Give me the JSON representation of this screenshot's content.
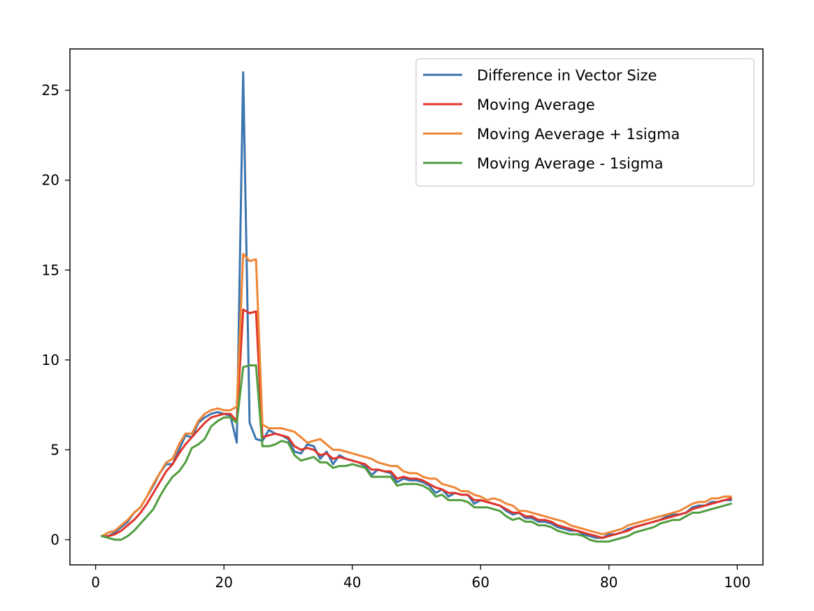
{
  "chart_data": {
    "type": "line",
    "title": "",
    "xlabel": "",
    "ylabel": "",
    "xlim": [
      -4,
      104
    ],
    "ylim": [
      -1.4,
      27.3
    ],
    "x_ticks": [
      0,
      20,
      40,
      60,
      80,
      100
    ],
    "y_ticks": [
      0,
      5,
      10,
      15,
      20,
      25
    ],
    "grid": false,
    "legend_position": "top-right",
    "x": [
      1,
      2,
      3,
      4,
      5,
      6,
      7,
      8,
      9,
      10,
      11,
      12,
      13,
      14,
      15,
      16,
      17,
      18,
      19,
      20,
      21,
      22,
      23,
      24,
      25,
      26,
      27,
      28,
      29,
      30,
      31,
      32,
      33,
      34,
      35,
      36,
      37,
      38,
      39,
      40,
      41,
      42,
      43,
      44,
      45,
      46,
      47,
      48,
      49,
      50,
      51,
      52,
      53,
      54,
      55,
      56,
      57,
      58,
      59,
      60,
      61,
      62,
      63,
      64,
      65,
      66,
      67,
      68,
      69,
      70,
      71,
      72,
      73,
      74,
      75,
      76,
      77,
      78,
      79,
      80,
      81,
      82,
      83,
      84,
      85,
      86,
      87,
      88,
      89,
      90,
      91,
      92,
      93,
      94,
      95,
      96,
      97,
      98,
      99
    ],
    "series": [
      {
        "name": "Difference in Vector Size",
        "color": "#3b75af",
        "values": [
          0.2,
          0.2,
          0.4,
          0.7,
          1.0,
          1.5,
          1.8,
          2.4,
          3.0,
          3.7,
          4.2,
          4.2,
          5.0,
          5.8,
          5.7,
          6.5,
          6.8,
          7.0,
          7.1,
          7.0,
          6.9,
          5.4,
          26.0,
          6.5,
          5.6,
          5.5,
          6.1,
          5.9,
          5.8,
          5.6,
          4.9,
          4.8,
          5.3,
          5.2,
          4.5,
          4.9,
          4.2,
          4.7,
          4.5,
          4.4,
          4.3,
          4.1,
          3.6,
          3.9,
          3.8,
          3.7,
          3.2,
          3.4,
          3.3,
          3.3,
          3.2,
          3.0,
          2.6,
          2.8,
          2.4,
          2.6,
          2.5,
          2.5,
          2.0,
          2.2,
          2.1,
          2.0,
          1.9,
          1.6,
          1.4,
          1.5,
          1.2,
          1.2,
          1.0,
          1.0,
          0.9,
          0.7,
          0.6,
          0.5,
          0.5,
          0.3,
          0.2,
          0.1,
          0.1,
          0.3,
          0.3,
          0.4,
          0.6,
          0.7,
          0.8,
          0.9,
          1.0,
          1.1,
          1.3,
          1.4,
          1.4,
          1.5,
          1.8,
          1.9,
          1.9,
          2.1,
          2.1,
          2.2,
          2.2
        ]
      },
      {
        "name": "Moving Average",
        "color": "#e0352b",
        "values": [
          0.2,
          0.2,
          0.3,
          0.5,
          0.8,
          1.1,
          1.5,
          2.0,
          2.6,
          3.2,
          3.8,
          4.2,
          4.8,
          5.3,
          5.7,
          6.1,
          6.5,
          6.8,
          6.9,
          7.0,
          7.0,
          6.6,
          12.8,
          12.6,
          12.7,
          5.7,
          5.8,
          5.9,
          5.8,
          5.7,
          5.2,
          5.0,
          5.1,
          5.0,
          4.7,
          4.8,
          4.5,
          4.6,
          4.5,
          4.4,
          4.3,
          4.2,
          3.9,
          3.9,
          3.8,
          3.8,
          3.4,
          3.5,
          3.4,
          3.4,
          3.3,
          3.1,
          2.9,
          2.8,
          2.6,
          2.6,
          2.5,
          2.5,
          2.2,
          2.2,
          2.1,
          2.0,
          1.9,
          1.7,
          1.5,
          1.5,
          1.3,
          1.3,
          1.1,
          1.1,
          1.0,
          0.8,
          0.7,
          0.6,
          0.5,
          0.4,
          0.3,
          0.2,
          0.1,
          0.2,
          0.3,
          0.4,
          0.5,
          0.7,
          0.8,
          0.9,
          1.0,
          1.1,
          1.2,
          1.3,
          1.4,
          1.5,
          1.7,
          1.8,
          1.9,
          2.0,
          2.1,
          2.2,
          2.3
        ]
      },
      {
        "name": "Moving Aeverage + 1sigma",
        "color": "#ef8636",
        "values": [
          0.2,
          0.4,
          0.5,
          0.8,
          1.1,
          1.5,
          1.8,
          2.4,
          3.1,
          3.7,
          4.3,
          4.5,
          5.3,
          5.9,
          5.9,
          6.6,
          7.0,
          7.2,
          7.3,
          7.2,
          7.2,
          7.4,
          15.9,
          15.5,
          15.6,
          6.4,
          6.2,
          6.2,
          6.2,
          6.1,
          6.0,
          5.7,
          5.4,
          5.5,
          5.6,
          5.3,
          5.0,
          5.0,
          4.9,
          4.8,
          4.7,
          4.6,
          4.5,
          4.3,
          4.2,
          4.1,
          4.1,
          3.8,
          3.7,
          3.7,
          3.5,
          3.4,
          3.4,
          3.1,
          3.0,
          2.9,
          2.7,
          2.7,
          2.5,
          2.4,
          2.2,
          2.3,
          2.2,
          2.0,
          1.9,
          1.6,
          1.6,
          1.5,
          1.4,
          1.3,
          1.2,
          1.1,
          1.0,
          0.8,
          0.7,
          0.6,
          0.5,
          0.4,
          0.3,
          0.4,
          0.5,
          0.6,
          0.8,
          0.9,
          1.0,
          1.1,
          1.2,
          1.3,
          1.4,
          1.5,
          1.6,
          1.8,
          2.0,
          2.1,
          2.1,
          2.3,
          2.3,
          2.4,
          2.4
        ]
      },
      {
        "name": "Moving Average - 1sigma",
        "color": "#519d3e",
        "values": [
          0.2,
          0.1,
          0.0,
          0.0,
          0.2,
          0.5,
          0.9,
          1.3,
          1.7,
          2.4,
          3.0,
          3.5,
          3.8,
          4.3,
          5.1,
          5.3,
          5.6,
          6.3,
          6.6,
          6.8,
          6.8,
          6.5,
          9.6,
          9.7,
          9.7,
          5.2,
          5.2,
          5.3,
          5.5,
          5.4,
          4.7,
          4.4,
          4.5,
          4.6,
          4.3,
          4.3,
          4.0,
          4.1,
          4.1,
          4.2,
          4.1,
          4.0,
          3.5,
          3.5,
          3.5,
          3.5,
          3.0,
          3.1,
          3.1,
          3.1,
          3.0,
          2.8,
          2.4,
          2.5,
          2.2,
          2.2,
          2.2,
          2.1,
          1.8,
          1.8,
          1.8,
          1.7,
          1.6,
          1.3,
          1.1,
          1.2,
          1.0,
          1.0,
          0.8,
          0.8,
          0.7,
          0.5,
          0.4,
          0.3,
          0.3,
          0.2,
          0.0,
          -0.1,
          -0.1,
          -0.1,
          0.0,
          0.1,
          0.2,
          0.4,
          0.5,
          0.6,
          0.7,
          0.9,
          1.0,
          1.1,
          1.1,
          1.3,
          1.5,
          1.5,
          1.6,
          1.7,
          1.8,
          1.9,
          2.0
        ]
      }
    ]
  }
}
